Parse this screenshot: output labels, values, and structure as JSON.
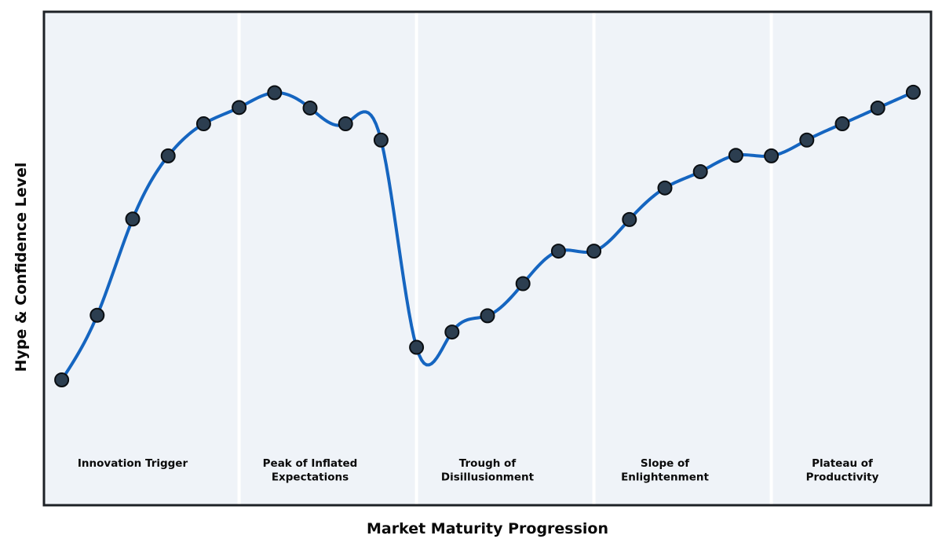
{
  "figure": {
    "colors": {
      "background": "#ffffff",
      "plot_background": "#eff3f8",
      "border": "#1d2126",
      "divider": "#ffffff",
      "line": "#1565c0",
      "marker_fill": "#2c3e50",
      "marker_edge": "#0a0e12",
      "text": "#0a0a0a"
    }
  },
  "chart_data": {
    "type": "line",
    "curve": "cubic-spline",
    "title": "",
    "xlabel": "Market Maturity Progression",
    "ylabel": "Hype & Confidence Level",
    "x": [
      1,
      2,
      3,
      4,
      5,
      6,
      7,
      8,
      9,
      10,
      11,
      12,
      13,
      14,
      15,
      16,
      17,
      18,
      19,
      20,
      21,
      22,
      23,
      24,
      25
    ],
    "y": [
      25.4,
      38.5,
      58.0,
      70.8,
      77.3,
      80.6,
      83.6,
      80.5,
      77.3,
      74.0,
      32.0,
      35.1,
      38.4,
      44.9,
      51.5,
      51.5,
      57.9,
      64.3,
      67.6,
      70.9,
      70.8,
      74.0,
      77.3,
      80.5,
      83.7
    ],
    "xlim": [
      0.5,
      25.5
    ],
    "ylim": [
      0,
      100
    ],
    "grid": false,
    "axis_ticks": "none",
    "legend": "none",
    "marker": "circle",
    "phase_divider_x": [
      6,
      11,
      16,
      21
    ],
    "phases": [
      {
        "label": "Innovation Trigger",
        "label_x": 3
      },
      {
        "label": "Peak of Inflated\nExpectations",
        "label_x": 8
      },
      {
        "label": "Trough of\nDisillusionment",
        "label_x": 13
      },
      {
        "label": "Slope of\nEnlightenment",
        "label_x": 18
      },
      {
        "label": "Plateau of\nProductivity",
        "label_x": 23
      }
    ]
  }
}
